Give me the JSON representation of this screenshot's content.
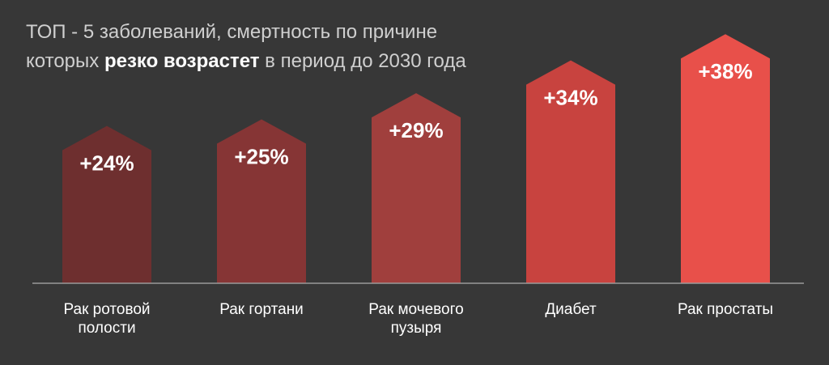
{
  "title": {
    "line1": "ТОП - 5 заболеваний, смертность по причине",
    "line2_pre": "которых ",
    "line2_bold": "резко возрастет",
    "line2_post": " в период до 2030 года"
  },
  "chart_data": {
    "type": "bar",
    "categories": [
      [
        "Рак ротовой",
        "полости"
      ],
      [
        "Рак гортани"
      ],
      [
        "Рак мочевого",
        "пузыря"
      ],
      [
        "Диабет"
      ],
      [
        "Рак простаты"
      ]
    ],
    "values": [
      24,
      25,
      29,
      34,
      38
    ],
    "value_labels": [
      "+24%",
      "+25%",
      "+29%",
      "+34%",
      "+38%"
    ],
    "colors": [
      "#6e2f2f",
      "#863535",
      "#a03f3d",
      "#c8433f",
      "#e8504a"
    ],
    "axis_color": "#9a9a9a",
    "grid": false,
    "ylim": [
      0,
      40
    ]
  }
}
